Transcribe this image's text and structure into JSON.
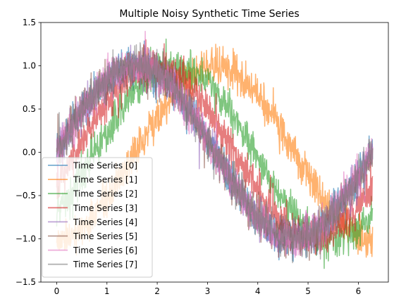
{
  "chart_data": {
    "type": "line",
    "title": "Multiple Noisy Synthetic Time Series",
    "xlabel": "",
    "ylabel": "",
    "xlim": [
      -0.3142,
      6.5973
    ],
    "ylim": [
      -1.5,
      1.5
    ],
    "x_ticks": [
      0,
      1,
      2,
      3,
      4,
      5,
      6
    ],
    "x_tick_labels": [
      "0",
      "1",
      "2",
      "3",
      "4",
      "5",
      "6"
    ],
    "y_ticks": [
      -1.5,
      -1.0,
      -0.5,
      0.0,
      0.5,
      1.0,
      1.5
    ],
    "y_tick_labels": [
      "−1.5",
      "−1.0",
      "−0.5",
      "0.0",
      "0.5",
      "1.0",
      "1.5"
    ],
    "grid": false,
    "legend_position": "lower-left",
    "x_range": [
      0,
      6.2832
    ],
    "series": [
      {
        "name": "Time Series [0]",
        "color": "#1f77b4",
        "phase": 0.0,
        "noise_amplitude": 0.2
      },
      {
        "name": "Time Series [1]",
        "color": "#ff7f0e",
        "phase": 1.571,
        "noise_amplitude": 0.2
      },
      {
        "name": "Time Series [2]",
        "color": "#2ca02c",
        "phase": 0.785,
        "noise_amplitude": 0.2
      },
      {
        "name": "Time Series [3]",
        "color": "#d62728",
        "phase": 0.393,
        "noise_amplitude": 0.2
      },
      {
        "name": "Time Series [4]",
        "color": "#9467bd",
        "phase": 0.0,
        "noise_amplitude": 0.2
      },
      {
        "name": "Time Series [5]",
        "color": "#8c564b",
        "phase": 0.0,
        "noise_amplitude": 0.2
      },
      {
        "name": "Time Series [6]",
        "color": "#e377c2",
        "phase": 0.0,
        "noise_amplitude": 0.2
      },
      {
        "name": "Time Series [7]",
        "color": "#7f7f7f",
        "phase": 0.0,
        "noise_amplitude": 0.2
      }
    ]
  }
}
